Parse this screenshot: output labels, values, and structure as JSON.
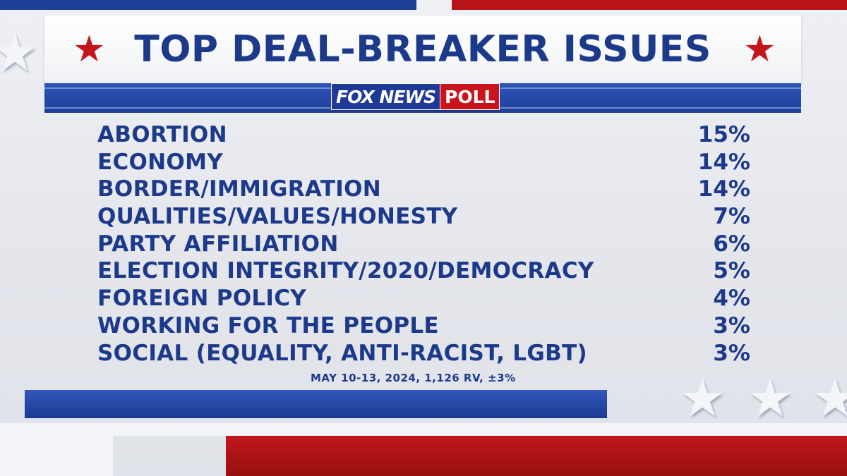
{
  "title": "TOP DEAL-BREAKER ISSUES",
  "logo": {
    "brand": "FOX NEWS",
    "poll": "POLL"
  },
  "source_note": "MAY 10-13, 2024, 1,126 RV, ±3%",
  "colors": {
    "navy": "#1d3a8a",
    "red": "#c4161c",
    "blue_bar": "#2a4cab"
  },
  "icons": {
    "title_left": "star-icon",
    "title_right": "star-icon"
  },
  "chart_data": {
    "type": "table",
    "title": "TOP DEAL-BREAKER ISSUES",
    "rows": [
      {
        "label": "ABORTION",
        "value": 15,
        "display": "15%"
      },
      {
        "label": "ECONOMY",
        "value": 14,
        "display": "14%"
      },
      {
        "label": "BORDER/IMMIGRATION",
        "value": 14,
        "display": "14%"
      },
      {
        "label": "QUALITIES/VALUES/HONESTY",
        "value": 7,
        "display": "7%"
      },
      {
        "label": "PARTY AFFILIATION",
        "value": 6,
        "display": "6%"
      },
      {
        "label": "ELECTION INTEGRITY/2020/DEMOCRACY",
        "value": 5,
        "display": "5%"
      },
      {
        "label": "FOREIGN POLICY",
        "value": 4,
        "display": "4%"
      },
      {
        "label": "WORKING FOR THE PEOPLE",
        "value": 3,
        "display": "3%"
      },
      {
        "label": "SOCIAL (EQUALITY, ANTI-RACIST, LGBT)",
        "value": 3,
        "display": "3%"
      }
    ]
  }
}
